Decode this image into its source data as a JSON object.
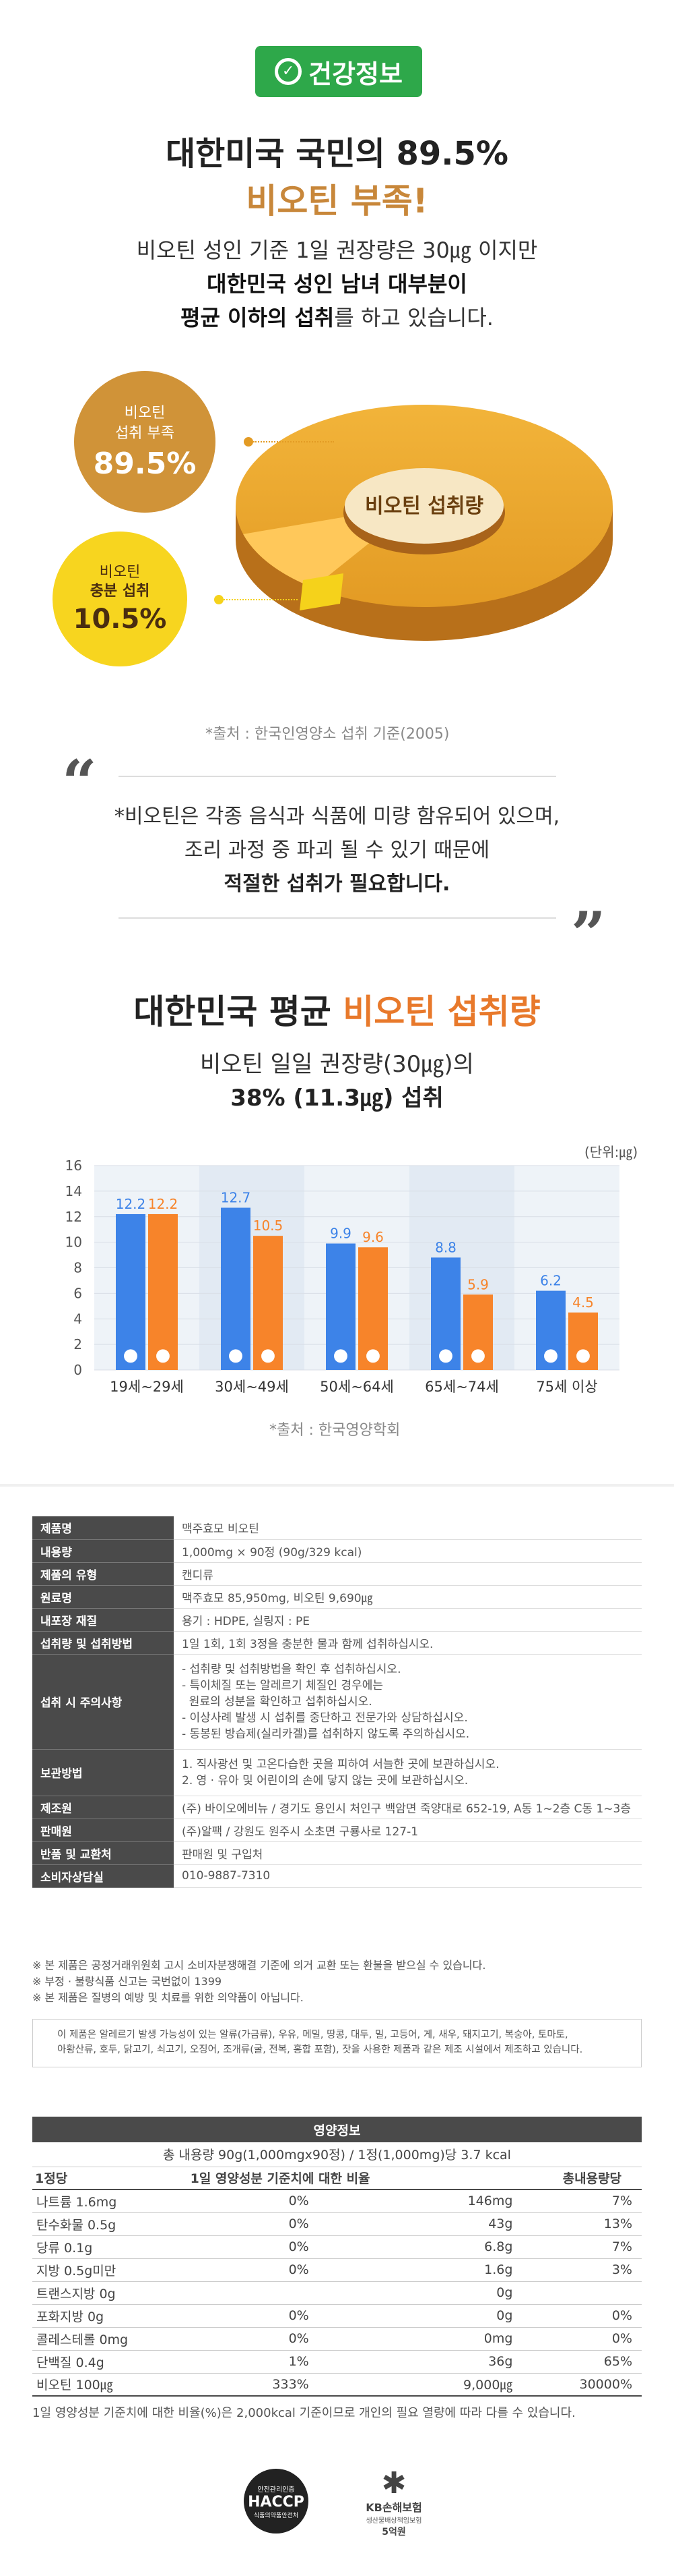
{
  "badge": {
    "label": "건강정보"
  },
  "hero": {
    "line1": "대한미국 국민의 89.5%",
    "line2": "비오틴 부족!",
    "desc1": "비오틴 성인 기준 1일 권장량은 30㎍ 이지만",
    "desc2": "대한민국 성인 남녀 대부분이",
    "desc3_bold": "평균 이하의 섭취",
    "desc3_rest": "를 하고 있습니다."
  },
  "donut": {
    "center_label": "비오틴 섭취량",
    "lack_label1": "비오틴",
    "lack_label2": "섭취 부족",
    "lack_value": "89.5%",
    "ok_label1": "비오틴",
    "ok_label2": "충분 섭취",
    "ok_value": "10.5%",
    "lack_fraction": 0.895,
    "source": "*출처 : 한국인영양소 섭취 기준(2005)"
  },
  "quote": {
    "line1": "*비오틴은 각종 음식과 식품에 미량 함유되어 있으며,",
    "line2": "조리 과정 중 파괴 될 수 있기 때문에",
    "line3": "적절한 섭취가 필요합니다."
  },
  "section2": {
    "title_a": "대한민국 평균",
    "title_b": "비오틴 섭취량",
    "desc1": "비오틴 일일 권장량(30㎍)의",
    "desc2": "38% (11.3㎍) 섭취",
    "unit": "(단위:㎍)",
    "source": "*출처 : 한국영양학회"
  },
  "chart_data": {
    "type": "bar",
    "categories": [
      "19세~29세",
      "30세~49세",
      "50세~64세",
      "65세~74세",
      "75세 이상"
    ],
    "series": [
      {
        "name": "",
        "values": [
          12.2,
          12.7,
          9.9,
          8.8,
          6.2
        ],
        "color": "#3d83e8"
      },
      {
        "name": "",
        "values": [
          12.2,
          10.5,
          9.6,
          5.9,
          4.5
        ],
        "color": "#f7842a"
      }
    ],
    "yticks": [
      "16",
      "14",
      "12",
      "10",
      "8",
      "6",
      "4",
      "2",
      "0"
    ],
    "ylim": [
      0,
      16
    ],
    "grid": true,
    "colors": {
      "male": "#3d83e8",
      "female": "#f7842a",
      "label_male": "#3d83e8",
      "label_female": "#f7842a"
    }
  },
  "product_info": [
    {
      "k": "제품명",
      "v": "맥주효모 비오틴"
    },
    {
      "k": "내용량",
      "v": "1,000mg × 90정 (90g/329 kcal)"
    },
    {
      "k": "제품의 유형",
      "v": "캔디류"
    },
    {
      "k": "원료명",
      "v": "맥주효모 85,950mg, 비오틴 9,690㎍"
    },
    {
      "k": "내포장 재질",
      "v": "용기 : HDPE, 실링지 : PE"
    },
    {
      "k": "섭취량 및 섭취방법",
      "v": "1일 1회, 1회 3정을 충분한 물과 함께 섭취하십시오."
    },
    {
      "k": "섭취 시 주의사항",
      "lines": [
        "- 섭취량 및 섭취방법을 확인 후 섭취하십시오.",
        "- 특이체질 또는 알레르기 체질인 경우에는",
        "  원료의 성분을 확인하고 섭취하십시오.",
        "- 이상사례 발생 시 섭취를 중단하고 전문가와 상담하십시오.",
        "- 동봉된 방습제(실리카겔)를 섭취하지 않도록 주의하십시오."
      ]
    },
    {
      "k": "보관방법",
      "lines": [
        "1. 직사광선 및 고온다습한 곳을 피하여 서늘한 곳에 보관하십시오.",
        "2. 영 · 유아 및 어린이의 손에 닿지 않는 곳에 보관하십시오."
      ]
    },
    {
      "k": "제조원",
      "v": "(주) 바이오에비뉴 / 경기도 용인시 처인구 백암면 죽양대로 652-19, A동 1~2층 C동 1~3층"
    },
    {
      "k": "판매원",
      "v": "(주)알팩 / 강원도 원주시 소초면 구룡사로 127-1"
    },
    {
      "k": "반품 및 교환처",
      "v": "판매원 및 구입처"
    },
    {
      "k": "소비자상담실",
      "v": "010-9887-7310"
    }
  ],
  "notes": [
    "※ 본 제품은 공정거래위원회 고시 소비자분쟁해결 기준에 의거 교환 또는 환불을 받으실 수 있습니다.",
    "※ 부정 · 불량식품 신고는 국번없이 1399",
    "※ 본 제품은 질병의 예방 및 치료를 위한 의약품이 아닙니다."
  ],
  "allergy": {
    "line1": "이 제품은 알레르기 발생 가능성이 있는 알류(가금류), 우유, 메밀, 땅콩, 대두, 밀, 고등어, 게, 새우, 돼지고기, 복숭아, 토마토,",
    "line2": "아황산류, 호두, 닭고기, 쇠고기, 오징어, 조개류(굴, 전복, 홍합 포함), 잣을 사용한 제품과 같은 제조 시설에서 제조하고 있습니다."
  },
  "nutrition": {
    "title": "영양정보",
    "subtitle": "총 내용량 90g(1,000mgx90정) / 1정(1,000mg)당 3.7 kcal",
    "col1": "1정당",
    "col2": "1일 영양성분 기준치에 대한 비율",
    "col3": "총내용량당",
    "rows": [
      {
        "name": "나트륨 1.6mg",
        "pct": "0%",
        "total": "146mg",
        "tpct": "7%"
      },
      {
        "name": "탄수화물 0.5g",
        "pct": "0%",
        "total": "43g",
        "tpct": "13%"
      },
      {
        "name": "당류 0.1g",
        "pct": "0%",
        "total": "6.8g",
        "tpct": "7%"
      },
      {
        "name": "지방 0.5g미만",
        "pct": "0%",
        "total": "1.6g",
        "tpct": "3%"
      },
      {
        "name": "트랜스지방 0g",
        "pct": "",
        "total": "0g",
        "tpct": ""
      },
      {
        "name": "포화지방 0g",
        "pct": "0%",
        "total": "0g",
        "tpct": "0%"
      },
      {
        "name": "콜레스테롤 0mg",
        "pct": "0%",
        "total": "0mg",
        "tpct": "0%"
      },
      {
        "name": "단백질 0.4g",
        "pct": "1%",
        "total": "36g",
        "tpct": "65%"
      },
      {
        "name": "비오틴 100㎍",
        "pct": "333%",
        "total": "9,000㎍",
        "tpct": "30000%"
      }
    ],
    "footnote": "1일 영양성분 기준치에 대한 비율(%)은 2,000kcal 기준이므로 개인의 필요 열량에 따라 다를 수 있습니다."
  },
  "logos": {
    "haccp_top": "안전관리인증",
    "haccp": "HACCP",
    "haccp_bottom": "식품의약품안전처",
    "kb_name": "KB손해보험",
    "kb_sub": "생산물배상책임보험",
    "kb_amount": "5억원"
  }
}
